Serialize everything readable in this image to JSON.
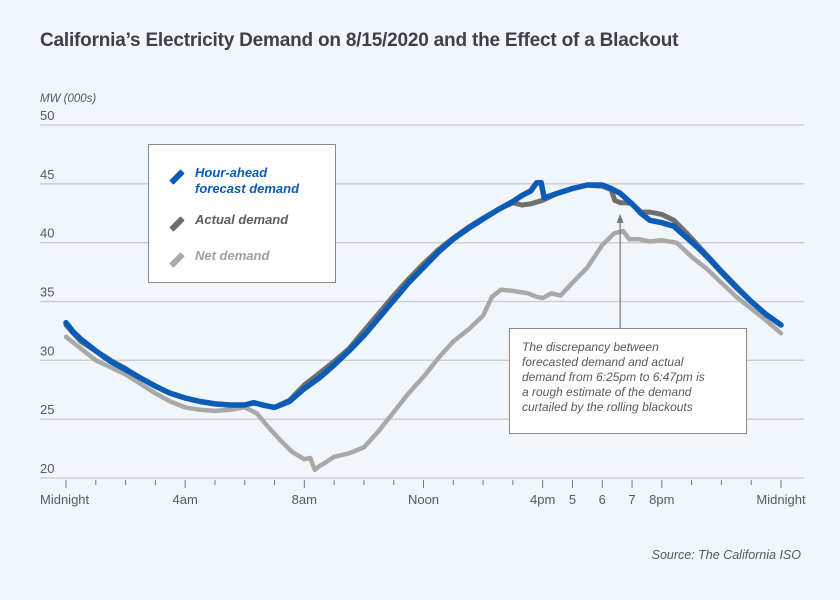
{
  "chart_data": {
    "type": "line",
    "title": "California’s Electricity Demand on 8/15/2020 and the Effect of a Blackout",
    "ylabel": "MW (000s)",
    "xlabel": "",
    "source": "Source: The California ISO",
    "ylim": [
      20,
      50
    ],
    "xlim": [
      0,
      24
    ],
    "x_unit": "hour of day",
    "grid": true,
    "yticks": [
      {
        "value": 50,
        "label": "50"
      },
      {
        "value": 45,
        "label": "45"
      },
      {
        "value": 40,
        "label": "40"
      },
      {
        "value": 35,
        "label": "35"
      },
      {
        "value": 30,
        "label": "30"
      },
      {
        "value": 25,
        "label": "25"
      },
      {
        "value": 20,
        "label": "20"
      }
    ],
    "xticks": [
      {
        "value": 0,
        "label": "Midnight"
      },
      {
        "value": 4,
        "label": "4am"
      },
      {
        "value": 8,
        "label": "8am"
      },
      {
        "value": 12,
        "label": "Noon"
      },
      {
        "value": 16,
        "label": "4pm"
      },
      {
        "value": 17,
        "label": "5"
      },
      {
        "value": 18,
        "label": "6"
      },
      {
        "value": 19,
        "label": "7"
      },
      {
        "value": 20,
        "label": "8pm"
      },
      {
        "value": 24,
        "label": "Midnight"
      }
    ],
    "minor_xticks_every_hours": 1,
    "legend_position": "top-left",
    "series": [
      {
        "name": "Hour-ahead forecast demand",
        "color": "#0a5cb8",
        "x": [
          0,
          0.25,
          0.5,
          1,
          1.5,
          2,
          2.5,
          3,
          3.5,
          4,
          4.5,
          5,
          5.5,
          6,
          6.3,
          6.6,
          7,
          7.5,
          8,
          8.5,
          9,
          9.5,
          10,
          10.5,
          11,
          11.5,
          12,
          12.5,
          13,
          13.5,
          14,
          14.5,
          15,
          15.3,
          15.6,
          15.8,
          15.95,
          16.05,
          16.5,
          17,
          17.5,
          18,
          18.3,
          18.6,
          19,
          19.3,
          19.6,
          20,
          20.4,
          20.8,
          21.2,
          21.6,
          22,
          22.5,
          23,
          23.5,
          24
        ],
        "values": [
          33.2,
          32.4,
          31.8,
          30.8,
          29.9,
          29.2,
          28.5,
          27.8,
          27.2,
          26.8,
          26.5,
          26.3,
          26.2,
          26.2,
          26.4,
          26.2,
          26.0,
          26.5,
          27.6,
          28.5,
          29.6,
          30.8,
          32.1,
          33.6,
          35.1,
          36.6,
          37.9,
          39.2,
          40.3,
          41.2,
          42.0,
          42.8,
          43.5,
          44.0,
          44.4,
          45.1,
          45.1,
          43.8,
          44.2,
          44.6,
          44.9,
          44.9,
          44.6,
          44.2,
          43.3,
          42.5,
          41.9,
          41.7,
          41.4,
          40.5,
          39.6,
          38.6,
          37.5,
          36.2,
          35.0,
          33.9,
          33.0
        ]
      },
      {
        "name": "Actual demand",
        "color": "#6e6e6e",
        "x": [
          0,
          0.25,
          0.5,
          1,
          1.5,
          2,
          2.5,
          3,
          3.5,
          4,
          4.5,
          5,
          5.5,
          6,
          6.3,
          6.6,
          7,
          7.5,
          8,
          8.5,
          9,
          9.5,
          10,
          10.5,
          11,
          11.5,
          12,
          12.5,
          13,
          13.5,
          14,
          14.5,
          15,
          15.3,
          15.6,
          16,
          16.5,
          17,
          17.5,
          18,
          18.3,
          18.42,
          18.6,
          18.8,
          19,
          19.3,
          19.6,
          20,
          20.4,
          20.8,
          21.2,
          21.6,
          22,
          22.5,
          23,
          23.5,
          24
        ],
        "values": [
          33.0,
          32.3,
          31.6,
          30.8,
          30.0,
          29.3,
          28.5,
          27.8,
          27.2,
          26.8,
          26.5,
          26.3,
          26.2,
          26.2,
          26.4,
          26.2,
          26.0,
          26.6,
          27.9,
          28.9,
          29.9,
          31.0,
          32.5,
          34.0,
          35.5,
          36.9,
          38.2,
          39.4,
          40.4,
          41.3,
          42.1,
          42.8,
          43.4,
          43.2,
          43.3,
          43.6,
          44.2,
          44.6,
          44.9,
          44.8,
          44.5,
          43.6,
          43.4,
          43.4,
          43.3,
          42.6,
          42.6,
          42.4,
          41.9,
          40.9,
          39.8,
          38.7,
          37.6,
          36.3,
          35.0,
          33.9,
          33.0
        ]
      },
      {
        "name": "Net demand",
        "color": "#a8a8a8",
        "x": [
          0,
          0.5,
          1,
          1.5,
          2,
          2.5,
          3,
          3.5,
          4,
          4.5,
          5,
          5.5,
          6,
          6.4,
          6.8,
          7.2,
          7.6,
          8,
          8.2,
          8.35,
          8.5,
          8.7,
          9,
          9.5,
          10,
          10.5,
          11,
          11.5,
          12,
          12.5,
          13,
          13.5,
          14,
          14.3,
          14.6,
          15,
          15.5,
          15.8,
          16,
          16.3,
          16.6,
          17,
          17.5,
          18,
          18.4,
          18.7,
          18.9,
          19.2,
          19.6,
          20,
          20.5,
          21,
          21.5,
          22,
          22.5,
          23,
          23.5,
          24
        ],
        "values": [
          32.0,
          31.0,
          30.0,
          29.4,
          28.8,
          28.0,
          27.2,
          26.5,
          26.0,
          25.8,
          25.7,
          25.8,
          26.0,
          25.5,
          24.3,
          23.2,
          22.2,
          21.6,
          21.7,
          20.7,
          21.0,
          21.3,
          21.8,
          22.1,
          22.6,
          24.0,
          25.6,
          27.2,
          28.6,
          30.2,
          31.6,
          32.6,
          33.8,
          35.4,
          36.0,
          35.9,
          35.7,
          35.4,
          35.3,
          35.7,
          35.5,
          36.6,
          37.9,
          39.8,
          40.8,
          41.0,
          40.3,
          40.3,
          40.1,
          40.2,
          40.0,
          38.8,
          37.8,
          36.6,
          35.4,
          34.4,
          33.4,
          32.3
        ]
      }
    ],
    "annotation": {
      "text_lines": [
        "The discrepancy between",
        "forecasted demand and actual",
        "demand from 6:25pm to 6:47pm is",
        "a rough estimate of the demand",
        "curtailed by the rolling blackouts"
      ],
      "arrow_target_hour": 18.6,
      "arrow_target_value": 43.3
    }
  },
  "legend": {
    "items": [
      {
        "label_line1": "Hour-ahead",
        "label_line2": "forecast demand",
        "color": "#0a5cb8"
      },
      {
        "label_line1": "Actual demand",
        "label_line2": "",
        "color": "#6e6e6e"
      },
      {
        "label_line1": "Net demand",
        "label_line2": "",
        "color": "#a8a8a8"
      }
    ]
  }
}
